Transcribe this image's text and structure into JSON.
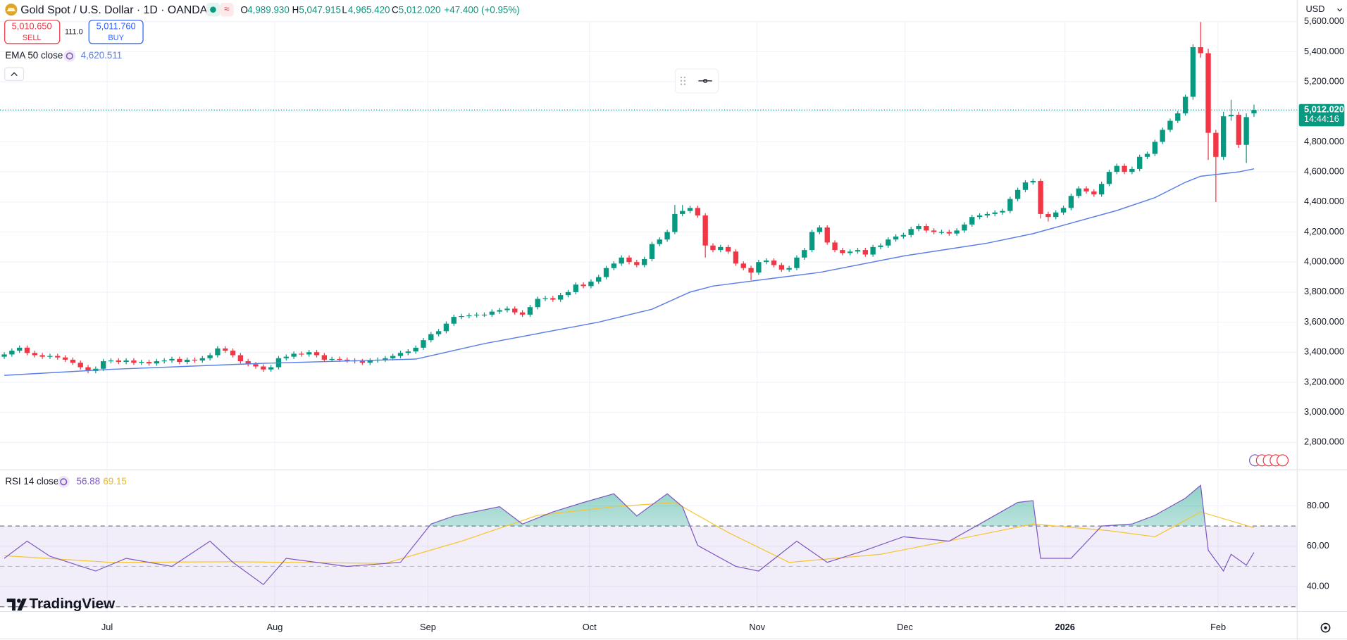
{
  "currency": "USD",
  "watermark": "TradingView",
  "toolbar": {
    "sell_price": "5,010.650",
    "sell": "SELL",
    "spread": "111.0",
    "buy_price": "5,011.760",
    "buy": "BUY"
  },
  "chart_data": [
    {
      "type": "candlestick",
      "title": "Gold Spot / U.S. Dollar · 1D · OANDA",
      "ohlc_labels": {
        "o": "O",
        "open": "4,989.930",
        "h": "H",
        "high": "5,047.915",
        "l": "L",
        "low": "4,965.420",
        "c": "C",
        "close": "5,012.020",
        "change": "+47.400 (+0.95%)"
      },
      "last_price_label": "5,012.020",
      "countdown": "14:44:16",
      "up_color": "#089981",
      "down_color": "#f23645",
      "open": [
        3370,
        3385,
        3410,
        3430,
        3395,
        3380,
        3370,
        3375,
        3365,
        3350,
        3330,
        3300,
        3275,
        3290,
        3340,
        3345,
        3335,
        3345,
        3330,
        3335,
        3325,
        3340,
        3345,
        3355,
        3335,
        3350,
        3345,
        3360,
        3380,
        3425,
        3410,
        3380,
        3340,
        3320,
        3305,
        3285,
        3300,
        3360,
        3370,
        3390,
        3385,
        3400,
        3380,
        3350,
        3355,
        3350,
        3345,
        3340,
        3330,
        3345,
        3350,
        3360,
        3375,
        3395,
        3405,
        3430,
        3480,
        3520,
        3540,
        3590,
        3635,
        3640,
        3645,
        3650,
        3650,
        3670,
        3680,
        3690,
        3665,
        3650,
        3700,
        3755,
        3760,
        3750,
        3780,
        3800,
        3850,
        3840,
        3870,
        3900,
        3960,
        3990,
        4030,
        4000,
        3980,
        4020,
        4120,
        4150,
        4200,
        4320,
        4340,
        4360,
        4310,
        4110,
        4080,
        4100,
        4070,
        3990,
        3960,
        3930,
        4000,
        4010,
        3980,
        3950,
        3960,
        4030,
        4080,
        4200,
        4230,
        4130,
        4080,
        4060,
        4070,
        4080,
        4050,
        4100,
        4110,
        4150,
        4170,
        4180,
        4220,
        4240,
        4210,
        4200,
        4200,
        4190,
        4210,
        4250,
        4300,
        4310,
        4320,
        4330,
        4340,
        4420,
        4480,
        4530,
        4540,
        4320,
        4300,
        4330,
        4360,
        4440,
        4490,
        4470,
        4450,
        4520,
        4600,
        4640,
        4600,
        4620,
        4700,
        4720,
        4800,
        4880,
        4940,
        4990,
        5100,
        5430,
        5390,
        4860,
        4700,
        4970,
        4980,
        4780,
        4989.93
      ],
      "high": [
        3400,
        3425,
        3445,
        3445,
        3410,
        3395,
        3390,
        3390,
        3380,
        3365,
        3345,
        3315,
        3305,
        3355,
        3360,
        3360,
        3360,
        3360,
        3350,
        3350,
        3355,
        3360,
        3370,
        3370,
        3365,
        3365,
        3375,
        3395,
        3440,
        3440,
        3425,
        3395,
        3355,
        3335,
        3320,
        3315,
        3375,
        3385,
        3405,
        3405,
        3415,
        3415,
        3395,
        3370,
        3370,
        3365,
        3360,
        3355,
        3360,
        3365,
        3375,
        3390,
        3410,
        3420,
        3445,
        3495,
        3535,
        3555,
        3605,
        3650,
        3655,
        3660,
        3665,
        3665,
        3685,
        3695,
        3705,
        3705,
        3680,
        3715,
        3770,
        3775,
        3775,
        3795,
        3815,
        3865,
        3865,
        3885,
        3915,
        3975,
        4005,
        4045,
        4045,
        4015,
        4035,
        4135,
        4165,
        4215,
        4380,
        4380,
        4375,
        4375,
        4325,
        4125,
        4115,
        4115,
        4085,
        4005,
        3975,
        4015,
        4025,
        4025,
        3995,
        3975,
        4045,
        4095,
        4215,
        4245,
        4245,
        4145,
        4095,
        4085,
        4095,
        4095,
        4115,
        4125,
        4165,
        4185,
        4195,
        4235,
        4255,
        4255,
        4225,
        4215,
        4215,
        4225,
        4265,
        4315,
        4325,
        4335,
        4345,
        4355,
        4435,
        4495,
        4545,
        4555,
        4555,
        4335,
        4345,
        4375,
        4455,
        4505,
        4505,
        4485,
        4535,
        4615,
        4655,
        4655,
        4635,
        4715,
        4735,
        4815,
        4895,
        4955,
        5005,
        5115,
        5450,
        5598,
        5420,
        4880,
        5000,
        5080,
        5000,
        4990,
        5047.915
      ],
      "low": [
        3355,
        3370,
        3395,
        3380,
        3365,
        3355,
        3355,
        3350,
        3335,
        3315,
        3285,
        3260,
        3260,
        3275,
        3325,
        3320,
        3320,
        3315,
        3315,
        3310,
        3310,
        3325,
        3330,
        3320,
        3320,
        3330,
        3330,
        3345,
        3365,
        3395,
        3365,
        3325,
        3305,
        3290,
        3270,
        3270,
        3285,
        3345,
        3355,
        3370,
        3370,
        3365,
        3335,
        3335,
        3335,
        3330,
        3325,
        3315,
        3315,
        3330,
        3335,
        3345,
        3360,
        3380,
        3390,
        3415,
        3465,
        3505,
        3525,
        3575,
        3620,
        3625,
        3630,
        3635,
        3635,
        3655,
        3665,
        3650,
        3635,
        3635,
        3685,
        3740,
        3735,
        3735,
        3765,
        3785,
        3825,
        3825,
        3855,
        3885,
        3945,
        3975,
        3985,
        3965,
        3965,
        4005,
        4105,
        4135,
        4185,
        4305,
        4325,
        4295,
        4030,
        4065,
        4065,
        4055,
        3975,
        3945,
        3880,
        3915,
        3985,
        3965,
        3935,
        3935,
        3945,
        4015,
        4065,
        4185,
        4115,
        4065,
        4045,
        4045,
        4055,
        4035,
        4035,
        4085,
        4095,
        4135,
        4155,
        4165,
        4205,
        4195,
        4185,
        4185,
        4175,
        4175,
        4195,
        4235,
        4285,
        4295,
        4305,
        4315,
        4325,
        4405,
        4465,
        4515,
        4290,
        4270,
        4285,
        4315,
        4345,
        4425,
        4455,
        4435,
        4435,
        4505,
        4585,
        4585,
        4585,
        4605,
        4685,
        4705,
        4785,
        4865,
        4925,
        4975,
        5080,
        5360,
        4680,
        4400,
        4680,
        4940,
        4760,
        4660,
        4965.42
      ],
      "close": [
        3385,
        3410,
        3430,
        3395,
        3380,
        3370,
        3375,
        3365,
        3350,
        3330,
        3300,
        3275,
        3290,
        3340,
        3345,
        3335,
        3345,
        3330,
        3335,
        3325,
        3340,
        3345,
        3355,
        3335,
        3350,
        3345,
        3360,
        3380,
        3425,
        3410,
        3380,
        3340,
        3320,
        3305,
        3285,
        3300,
        3360,
        3370,
        3390,
        3385,
        3400,
        3380,
        3350,
        3355,
        3350,
        3345,
        3340,
        3330,
        3345,
        3350,
        3360,
        3375,
        3395,
        3405,
        3430,
        3480,
        3520,
        3540,
        3590,
        3635,
        3640,
        3645,
        3650,
        3650,
        3670,
        3680,
        3690,
        3665,
        3650,
        3700,
        3755,
        3760,
        3750,
        3780,
        3800,
        3850,
        3840,
        3870,
        3900,
        3960,
        3990,
        4030,
        4000,
        3980,
        4020,
        4120,
        4150,
        4200,
        4320,
        4340,
        4360,
        4310,
        4110,
        4080,
        4100,
        4070,
        3990,
        3960,
        3930,
        4000,
        4010,
        3980,
        3950,
        3960,
        4030,
        4080,
        4200,
        4230,
        4130,
        4080,
        4060,
        4070,
        4080,
        4050,
        4100,
        4110,
        4150,
        4170,
        4180,
        4220,
        4240,
        4210,
        4200,
        4200,
        4190,
        4210,
        4250,
        4300,
        4310,
        4320,
        4330,
        4340,
        4420,
        4480,
        4530,
        4540,
        4320,
        4300,
        4330,
        4360,
        4440,
        4490,
        4470,
        4450,
        4520,
        4600,
        4640,
        4600,
        4620,
        4700,
        4720,
        4800,
        4880,
        4940,
        4990,
        5100,
        5430,
        5390,
        4860,
        4700,
        4970,
        4980,
        4780,
        4964.62,
        5012.02
      ],
      "ema": {
        "name": "EMA 50 close",
        "value_label": "4,620.511",
        "color": "#5b7fe8",
        "x": [
          0,
          14,
          34,
          54,
          63,
          78,
          85,
          90,
          93,
          100,
          107,
          118,
          129,
          135,
          146,
          151,
          155,
          157,
          162,
          164
        ],
        "values": [
          3246,
          3286,
          3326,
          3354,
          3457,
          3600,
          3686,
          3800,
          3840,
          3886,
          3931,
          4040,
          4126,
          4189,
          4343,
          4429,
          4531,
          4571,
          4600,
          4620.511
        ]
      },
      "xlim": [
        -0.56,
        169.67
      ],
      "ylim": [
        2628.6,
        5600
      ],
      "yticks": [
        {
          "value": 2800,
          "label": "2,800.000"
        },
        {
          "value": 3000,
          "label": "3,000.000"
        },
        {
          "value": 3200,
          "label": "3,200.000"
        },
        {
          "value": 3400,
          "label": "3,400.000"
        },
        {
          "value": 3600,
          "label": "3,600.000"
        },
        {
          "value": 3800,
          "label": "3,800.000"
        },
        {
          "value": 4000,
          "label": "4,000.000"
        },
        {
          "value": 4200,
          "label": "4,200.000"
        },
        {
          "value": 4400,
          "label": "4,400.000"
        },
        {
          "value": 4600,
          "label": "4,600.000"
        },
        {
          "value": 4800,
          "label": "4,800.000"
        },
        {
          "value": 5000,
          "label": "5,000.000"
        },
        {
          "value": 5200,
          "label": "5,200.000"
        },
        {
          "value": 5400,
          "label": "5,400.000"
        },
        {
          "value": 5600,
          "label": "5,600.000"
        }
      ],
      "grid": true
    },
    {
      "type": "line",
      "title": "RSI 14 close",
      "series": [
        {
          "color": "#7e57c2",
          "value_label": "56.88",
          "x": [
            0,
            3,
            6,
            12,
            16,
            22,
            27,
            30,
            34,
            37,
            45,
            52,
            56,
            59,
            65,
            68,
            72,
            76,
            80,
            83,
            87,
            89,
            91,
            96,
            99,
            104,
            108,
            113,
            118,
            124,
            128,
            133,
            135,
            136,
            140,
            144,
            148,
            151,
            155,
            157,
            158,
            160,
            161,
            163,
            164
          ],
          "values": [
            54,
            62.5,
            55,
            47.7,
            54,
            50,
            62.5,
            52,
            41,
            54,
            50,
            52,
            71,
            75,
            79.6,
            71,
            77,
            81.7,
            86,
            75,
            86,
            79.6,
            60.4,
            50,
            47.7,
            62.5,
            52,
            58,
            64.7,
            62.5,
            71,
            81.7,
            82.6,
            54,
            54,
            70,
            71,
            75.3,
            83.8,
            90.2,
            58,
            47.7,
            56,
            50.6,
            56.88
          ]
        },
        {
          "color": "#f7c531",
          "value_label": "69.15",
          "x": [
            0,
            14,
            30,
            50,
            60,
            70,
            80,
            88,
            95,
            103,
            115,
            125,
            135,
            145,
            151,
            157,
            164
          ],
          "values": [
            55.3,
            52,
            52.3,
            51.5,
            62.5,
            75.3,
            79.6,
            81.7,
            66.8,
            52,
            56,
            63.4,
            71,
            67.7,
            64.7,
            77,
            69.15
          ]
        }
      ],
      "levels": [
        70,
        50,
        30
      ],
      "xlim": [
        -0.56,
        169.67
      ],
      "ylim": [
        27.65,
        97.45
      ],
      "yticks": [
        {
          "value": 80,
          "label": "80.00"
        },
        {
          "value": 60,
          "label": "60.00"
        },
        {
          "value": 40,
          "label": "40.00"
        }
      ],
      "xticks": [
        {
          "value": 13.5,
          "label": "Jul"
        },
        {
          "value": 35.5,
          "label": "Aug"
        },
        {
          "value": 55.6,
          "label": "Sep"
        },
        {
          "value": 76.8,
          "label": "Oct"
        },
        {
          "value": 98.8,
          "label": "Nov"
        },
        {
          "value": 118.2,
          "label": "Dec"
        },
        {
          "value": 139.2,
          "label": "2026"
        },
        {
          "value": 159.3,
          "label": "Feb"
        }
      ],
      "grid": true
    }
  ]
}
